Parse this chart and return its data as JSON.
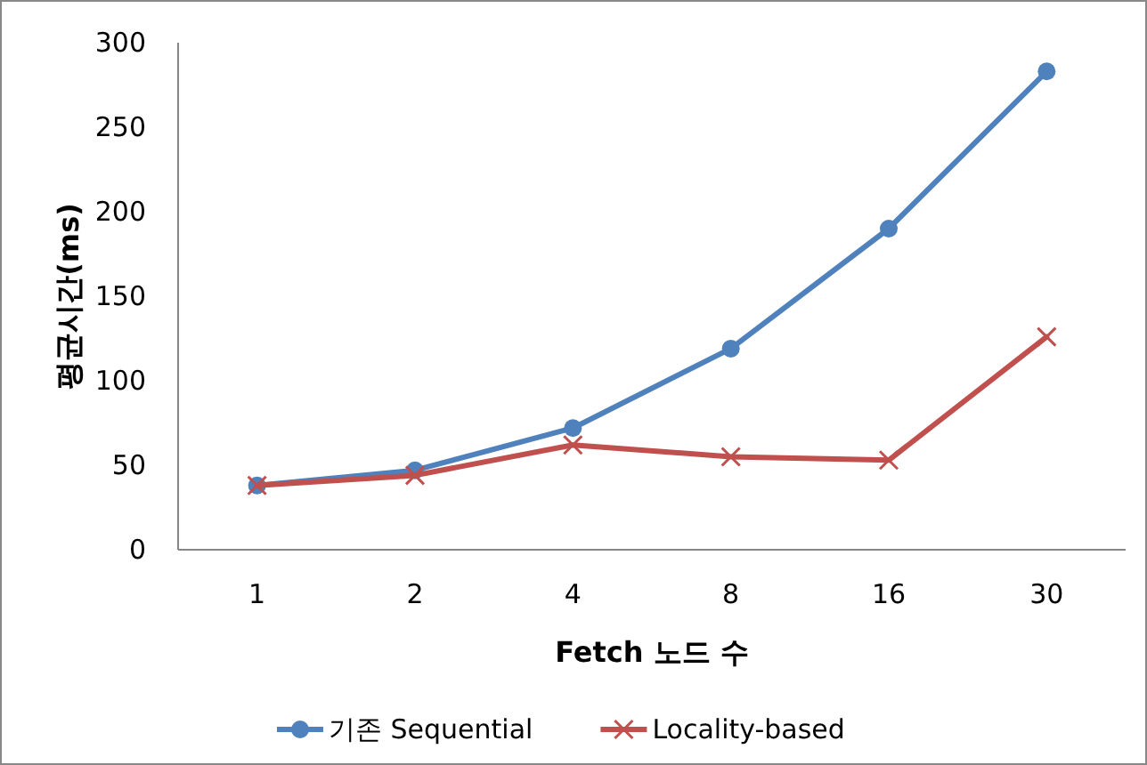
{
  "chart_data": {
    "type": "line",
    "xlabel": "Fetch 노드 수",
    "ylabel": "평균시간(ms)",
    "categories": [
      "1",
      "2",
      "4",
      "8",
      "16",
      "30"
    ],
    "series": [
      {
        "name": "기존 Sequential",
        "color": "#4f81bd",
        "marker": "circle",
        "values": [
          38,
          47,
          72,
          119,
          190,
          283
        ]
      },
      {
        "name": "Locality-based",
        "color": "#c0504d",
        "marker": "cross",
        "values": [
          38,
          44,
          62,
          55,
          53,
          126
        ]
      }
    ],
    "ylim": [
      0,
      300
    ],
    "yticks": [
      0,
      50,
      100,
      150,
      200,
      250,
      300
    ],
    "grid": false,
    "legend": "bottom"
  }
}
